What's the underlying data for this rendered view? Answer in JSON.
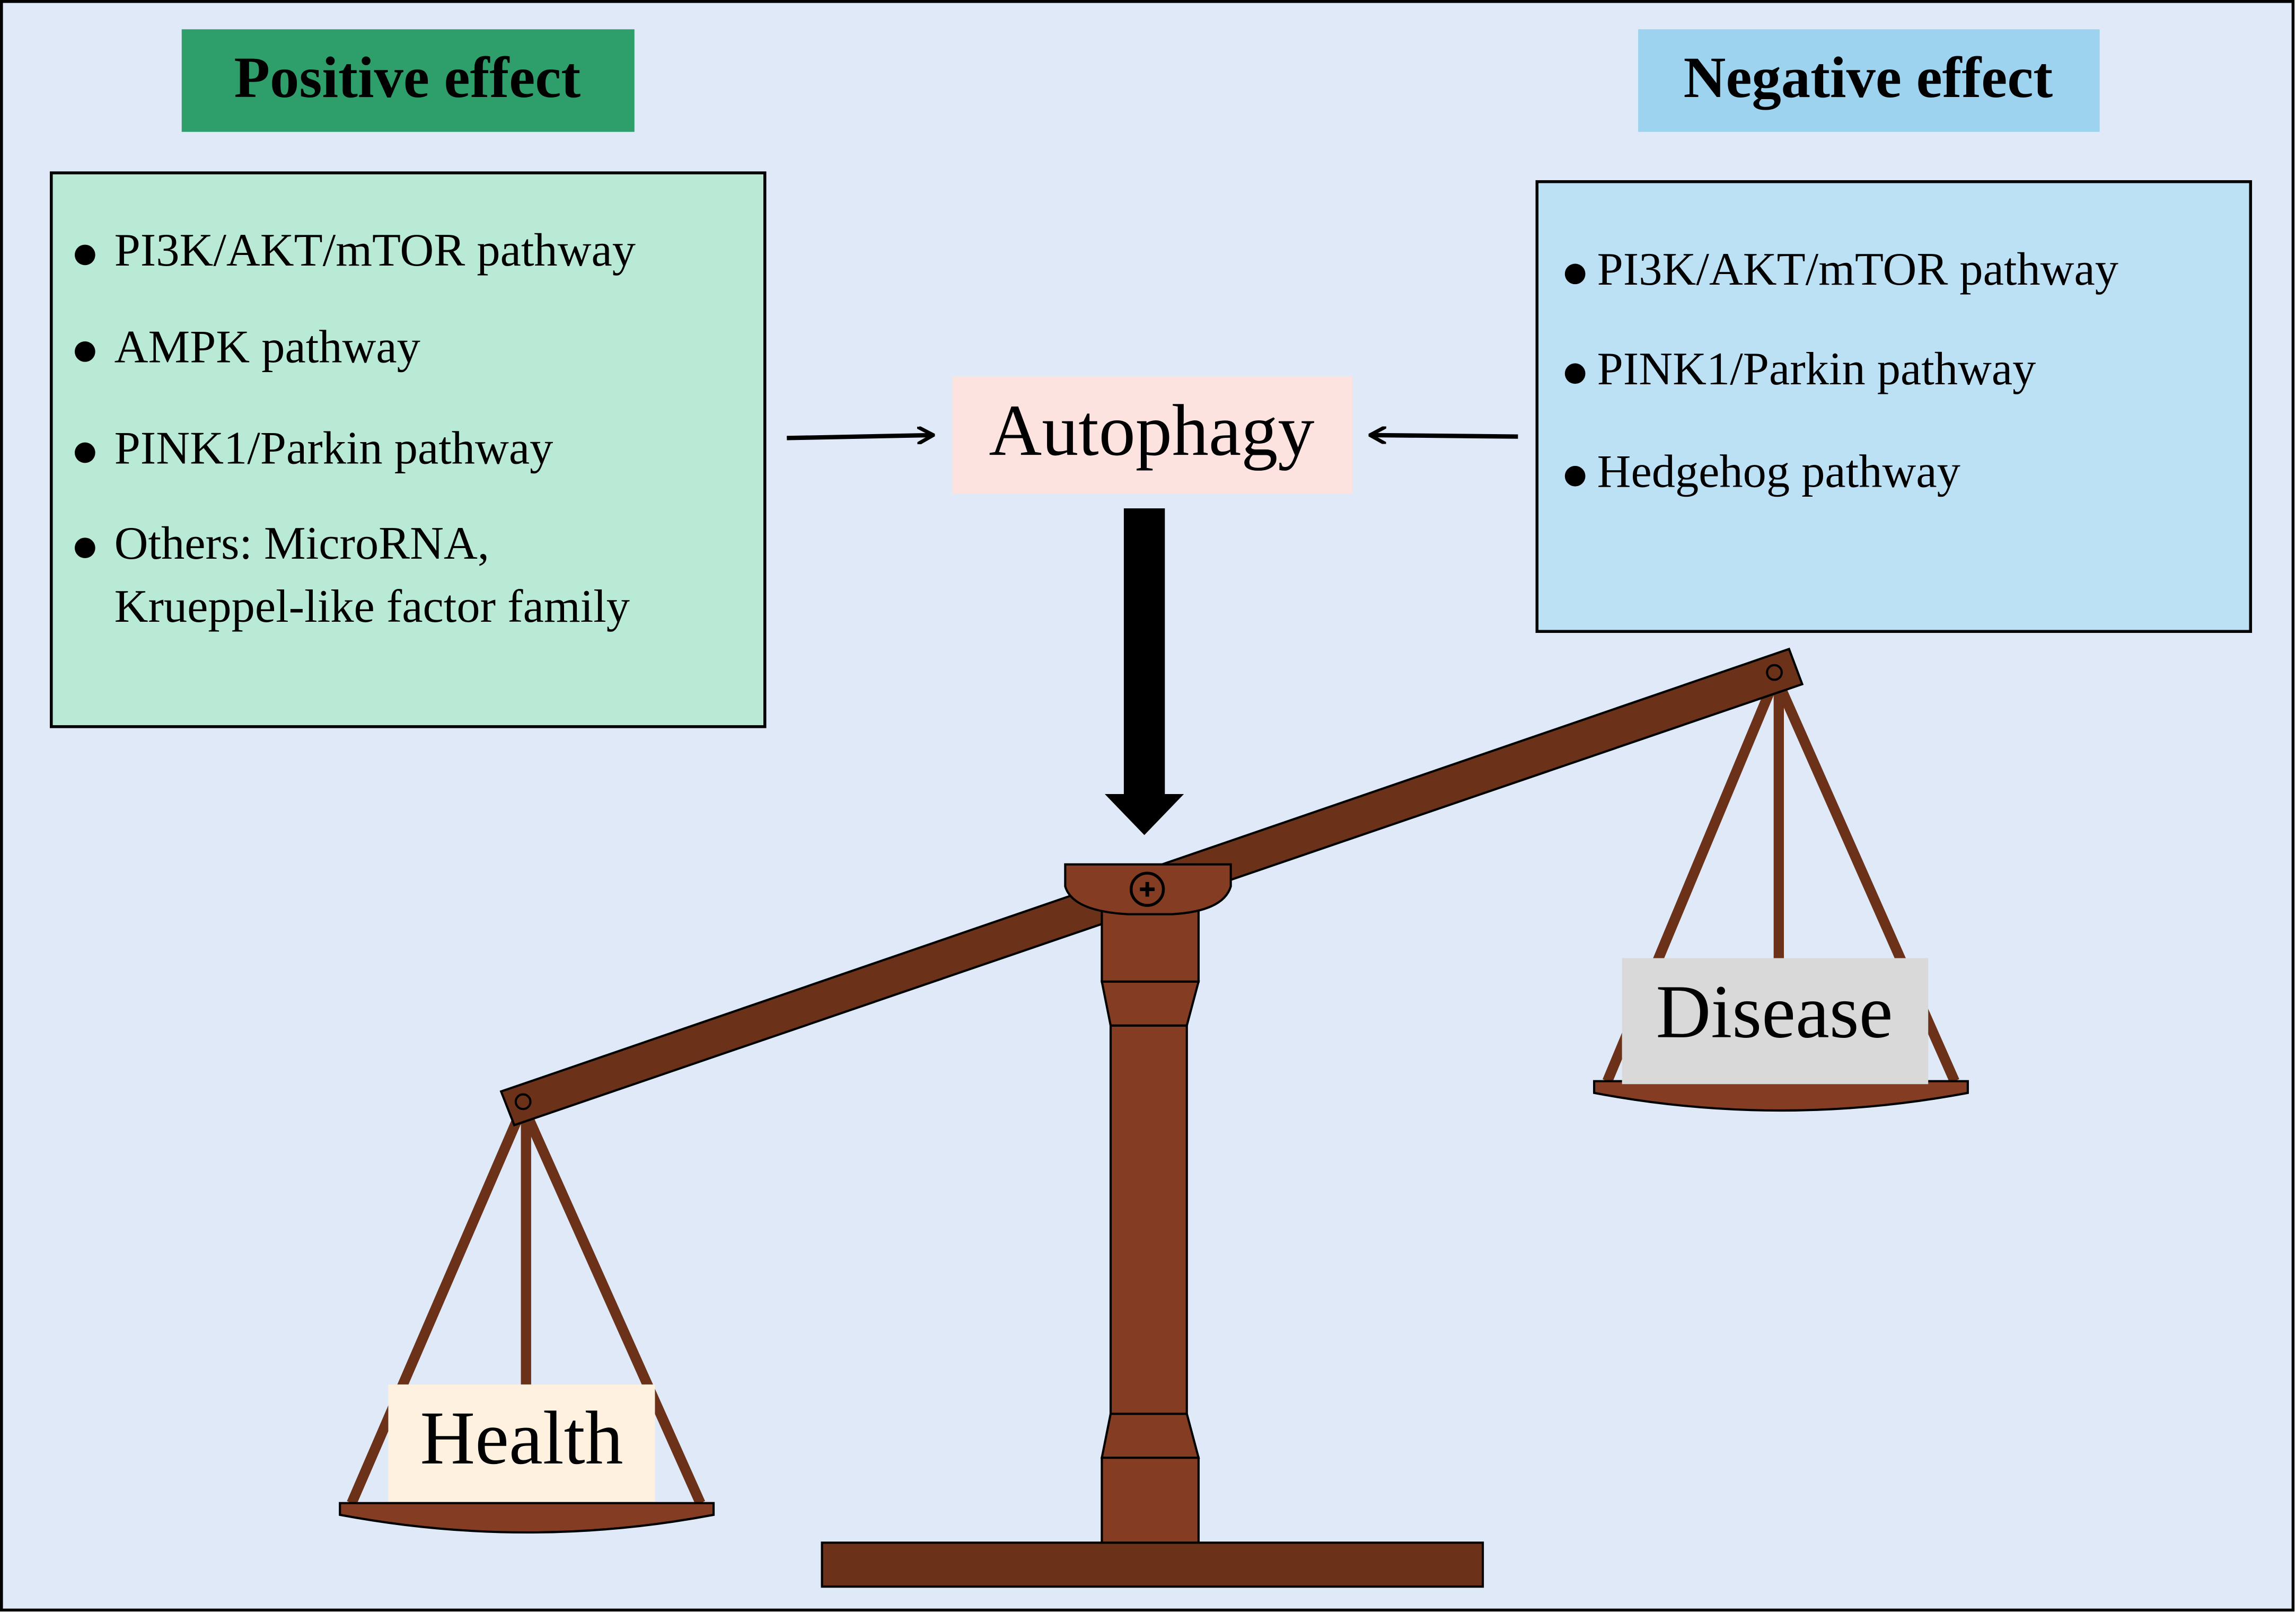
{
  "positive": {
    "title": "Positive effect",
    "items": [
      [
        "PI3K/AKT/mTOR pathway"
      ],
      [
        "AMPK pathway"
      ],
      [
        "PINK1/Parkin pathway"
      ],
      [
        "Others: MicroRNA,",
        "Krueppel-like factor family"
      ]
    ]
  },
  "negative": {
    "title": "Negative effect",
    "items": [
      [
        "PI3K/AKT/mTOR pathway"
      ],
      [
        "PINK1/Parkin pathway"
      ],
      [
        "Hedgehog pathway"
      ]
    ]
  },
  "center": "Autophagy",
  "left_pan": "Health",
  "right_pan": "Disease"
}
